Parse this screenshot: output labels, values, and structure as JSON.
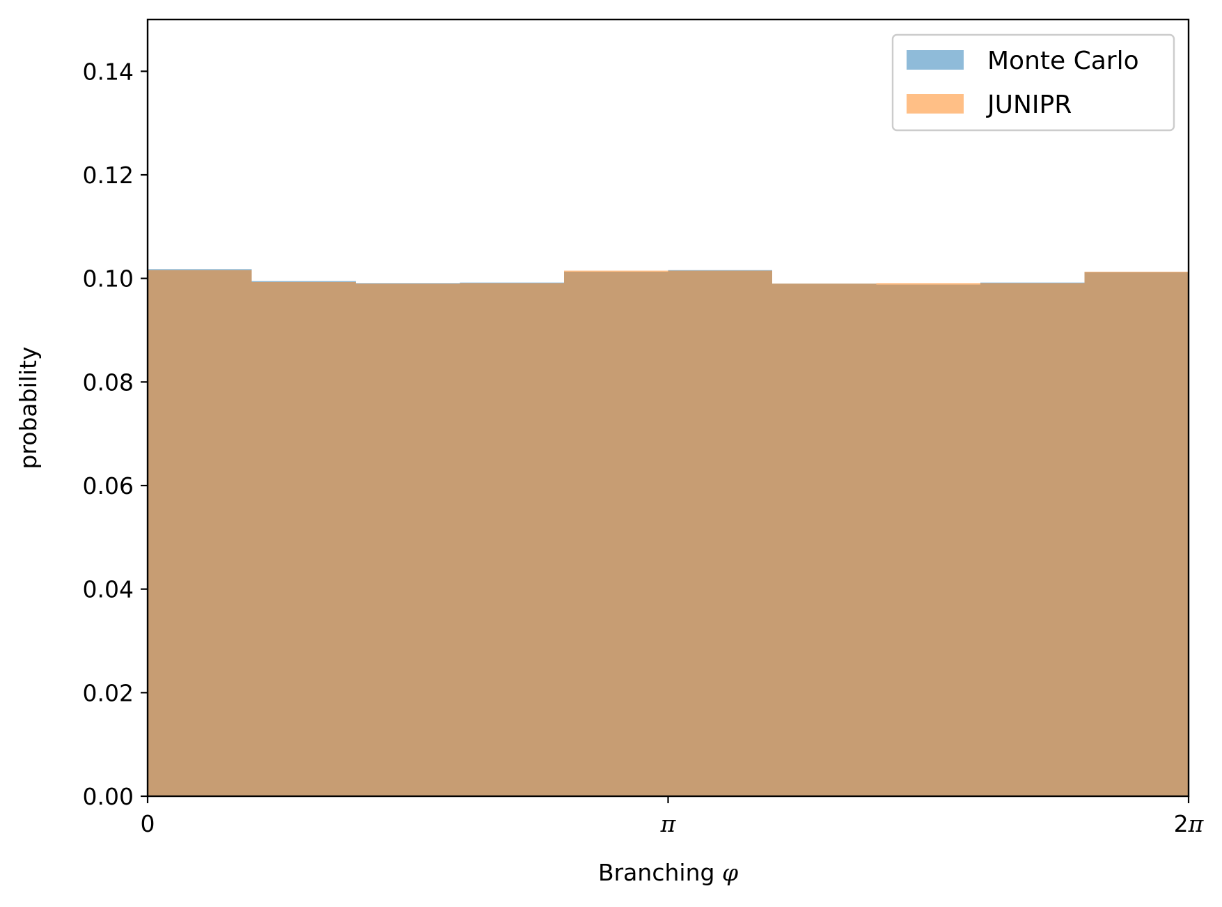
{
  "chart_data": {
    "type": "bar",
    "xlabel": "Branching φ",
    "ylabel": "probability",
    "xlim": [
      0,
      6.283185307
    ],
    "ylim": [
      0,
      0.15
    ],
    "x_ticks": [
      {
        "value": 0,
        "label": "0"
      },
      {
        "value": 3.141592654,
        "label": "π"
      },
      {
        "value": 6.283185307,
        "label": "2π"
      }
    ],
    "y_ticks": [
      {
        "value": 0.0,
        "label": "0.00"
      },
      {
        "value": 0.02,
        "label": "0.02"
      },
      {
        "value": 0.04,
        "label": "0.04"
      },
      {
        "value": 0.06,
        "label": "0.06"
      },
      {
        "value": 0.08,
        "label": "0.08"
      },
      {
        "value": 0.1,
        "label": "0.10"
      },
      {
        "value": 0.12,
        "label": "0.12"
      },
      {
        "value": 0.14,
        "label": "0.14"
      }
    ],
    "bin_edges": [
      0,
      0.6283185307,
      1.2566370614,
      1.8849555922,
      2.5132741229,
      3.1415926536,
      3.7699111843,
      4.398229715,
      5.0265482457,
      5.6548667765,
      6.2831853072
    ],
    "series": [
      {
        "name": "Monte Carlo",
        "color": "#1f77b4",
        "opacity": 0.5,
        "values": [
          0.1018,
          0.0995,
          0.0991,
          0.0992,
          0.1013,
          0.1016,
          0.099,
          0.0988,
          0.0992,
          0.1012
        ]
      },
      {
        "name": "JUNIPR",
        "color": "#ff7f0e",
        "opacity": 0.5,
        "values": [
          0.1016,
          0.0993,
          0.099,
          0.0991,
          0.1015,
          0.1015,
          0.099,
          0.0991,
          0.0991,
          0.1013
        ]
      }
    ],
    "legend_position": "top-right",
    "grid": false
  }
}
